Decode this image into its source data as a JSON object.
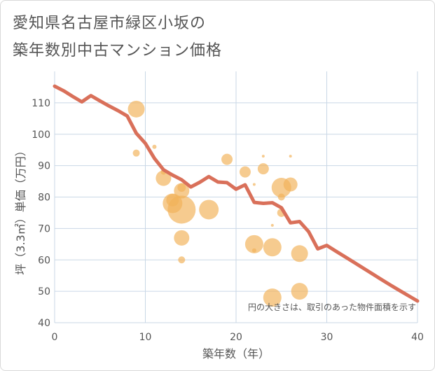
{
  "title_line1": "愛知県名古屋市緑区小坂の",
  "title_line2": "築年数別中古マンション価格",
  "chart_data": {
    "type": "scatter",
    "xlabel": "築年数（年）",
    "ylabel": "坪（3.3㎡）単価（万円）",
    "xlim": [
      0,
      40
    ],
    "ylim": [
      40,
      120
    ],
    "x_ticks": [
      0,
      10,
      20,
      30,
      40
    ],
    "y_ticks": [
      40,
      50,
      60,
      70,
      80,
      90,
      100,
      110
    ],
    "grid": true,
    "annotation": "円の大きさは、取引のあった物件面積を示す",
    "colors": {
      "line": "#d9705a",
      "bubble": "#f2b35a",
      "grid": "#c9d7e6"
    },
    "line": {
      "x": [
        0,
        1,
        2,
        3,
        4,
        5,
        6,
        7,
        8,
        9,
        10,
        11,
        12,
        13,
        14,
        15,
        16,
        17,
        18,
        19,
        20,
        21,
        22,
        23,
        24,
        25,
        26,
        27,
        28,
        29,
        30,
        31,
        32,
        33,
        34,
        35,
        36,
        37,
        38,
        39,
        40
      ],
      "y": [
        115.3,
        113.8,
        112.0,
        110.3,
        112.3,
        110.6,
        109.0,
        107.5,
        105.8,
        100.3,
        97.1,
        92.3,
        88.7,
        87.0,
        85.5,
        83.2,
        84.7,
        86.5,
        84.8,
        84.6,
        82.5,
        83.9,
        78.3,
        78.0,
        78.2,
        76.6,
        71.8,
        72.2,
        69.0,
        63.5,
        64.6,
        62.8,
        61.0,
        59.2,
        57.4,
        55.6,
        53.8,
        52.0,
        50.3,
        48.6,
        46.9
      ]
    },
    "points": [
      {
        "x": 9,
        "y": 108,
        "size": 12
      },
      {
        "x": 9,
        "y": 94,
        "size": 5
      },
      {
        "x": 11,
        "y": 96,
        "size": 3
      },
      {
        "x": 12,
        "y": 88,
        "size": 4
      },
      {
        "x": 12,
        "y": 86,
        "size": 11
      },
      {
        "x": 13,
        "y": 79,
        "size": 9
      },
      {
        "x": 13,
        "y": 78,
        "size": 14
      },
      {
        "x": 14,
        "y": 83,
        "size": 6
      },
      {
        "x": 14,
        "y": 82,
        "size": 11
      },
      {
        "x": 14,
        "y": 76,
        "size": 20
      },
      {
        "x": 14,
        "y": 67,
        "size": 11
      },
      {
        "x": 14,
        "y": 60,
        "size": 5
      },
      {
        "x": 17,
        "y": 76,
        "size": 14
      },
      {
        "x": 19,
        "y": 92,
        "size": 8
      },
      {
        "x": 21,
        "y": 88,
        "size": 8
      },
      {
        "x": 22,
        "y": 84,
        "size": 2
      },
      {
        "x": 22,
        "y": 65,
        "size": 13
      },
      {
        "x": 22,
        "y": 63,
        "size": 3
      },
      {
        "x": 23,
        "y": 93,
        "size": 2
      },
      {
        "x": 23,
        "y": 89,
        "size": 8
      },
      {
        "x": 24,
        "y": 71,
        "size": 2
      },
      {
        "x": 24,
        "y": 64,
        "size": 13
      },
      {
        "x": 24,
        "y": 48,
        "size": 13
      },
      {
        "x": 25,
        "y": 83,
        "size": 14
      },
      {
        "x": 25,
        "y": 80,
        "size": 5
      },
      {
        "x": 25,
        "y": 75,
        "size": 6
      },
      {
        "x": 26,
        "y": 93,
        "size": 2
      },
      {
        "x": 26,
        "y": 84,
        "size": 10
      },
      {
        "x": 27,
        "y": 62,
        "size": 12
      },
      {
        "x": 27,
        "y": 50,
        "size": 12
      }
    ]
  }
}
